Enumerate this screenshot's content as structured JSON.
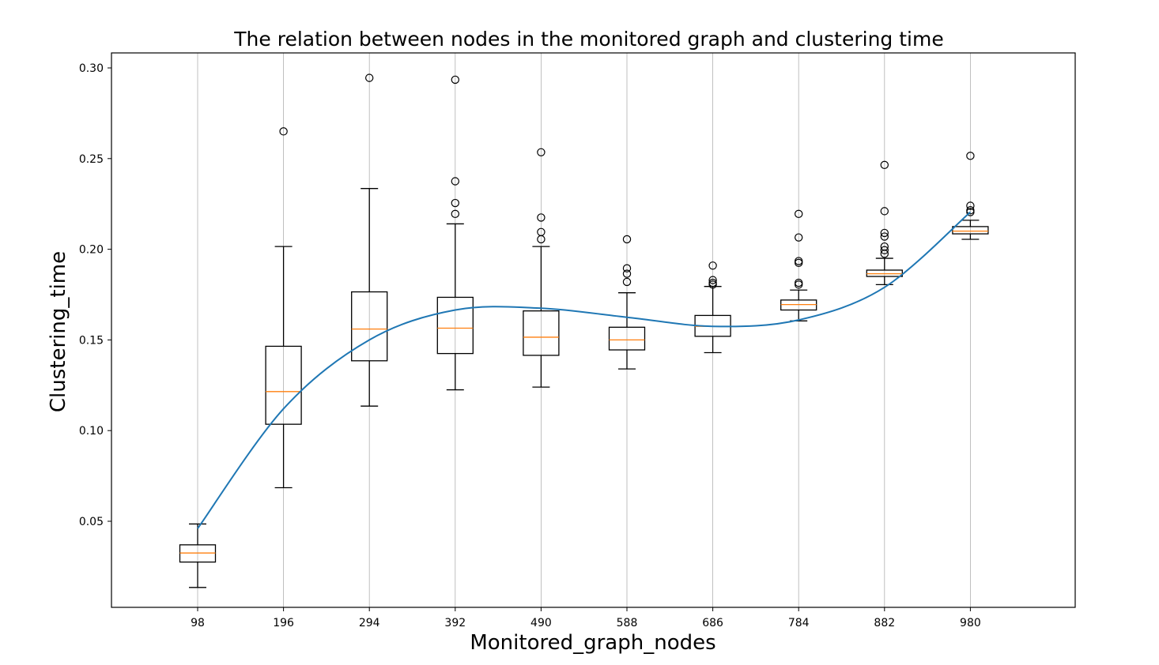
{
  "chart_data": {
    "type": "box",
    "title": "The relation between nodes in the monitored graph and clustering time",
    "xlabel": "Monitored_graph_nodes",
    "ylabel": "Clustering_time",
    "ylim": [
      0.0,
      0.3
    ],
    "y_ticks": [
      "0.05",
      "0.10",
      "0.15",
      "0.20",
      "0.25",
      "0.30"
    ],
    "categories": [
      "98",
      "196",
      "294",
      "392",
      "490",
      "588",
      "686",
      "784",
      "882",
      "980"
    ],
    "grid": "vertical",
    "box_color": "#000000",
    "median_color": "#ff7f0e",
    "trend_color": "#1f77b4",
    "boxes": [
      {
        "whislo": 0.0135,
        "q1": 0.0275,
        "med": 0.0325,
        "q3": 0.037,
        "whishi": 0.0485,
        "fliers": []
      },
      {
        "whislo": 0.0685,
        "q1": 0.1035,
        "med": 0.1215,
        "q3": 0.1465,
        "whishi": 0.2015,
        "fliers": [
          0.265
        ]
      },
      {
        "whislo": 0.1135,
        "q1": 0.1385,
        "med": 0.156,
        "q3": 0.1765,
        "whishi": 0.2335,
        "fliers": [
          0.2945
        ]
      },
      {
        "whislo": 0.1225,
        "q1": 0.1425,
        "med": 0.1565,
        "q3": 0.1735,
        "whishi": 0.214,
        "fliers": [
          0.2935,
          0.2375,
          0.2255,
          0.2195
        ]
      },
      {
        "whislo": 0.124,
        "q1": 0.1415,
        "med": 0.1515,
        "q3": 0.166,
        "whishi": 0.2015,
        "fliers": [
          0.2535,
          0.2175,
          0.2095,
          0.2055
        ]
      },
      {
        "whislo": 0.134,
        "q1": 0.1445,
        "med": 0.15,
        "q3": 0.157,
        "whishi": 0.176,
        "fliers": [
          0.2055,
          0.1895,
          0.1865,
          0.182
        ]
      },
      {
        "whislo": 0.143,
        "q1": 0.152,
        "med": 0.1575,
        "q3": 0.1635,
        "whishi": 0.1795,
        "fliers": [
          0.191,
          0.183,
          0.1815,
          0.1805
        ]
      },
      {
        "whislo": 0.1605,
        "q1": 0.1665,
        "med": 0.1695,
        "q3": 0.172,
        "whishi": 0.1775,
        "fliers": [
          0.2195,
          0.2065,
          0.1935,
          0.1925,
          0.1815,
          0.1805
        ]
      },
      {
        "whislo": 0.1805,
        "q1": 0.185,
        "med": 0.1865,
        "q3": 0.1885,
        "whishi": 0.195,
        "fliers": [
          0.2465,
          0.221,
          0.209,
          0.207,
          0.2015,
          0.1995,
          0.1975
        ]
      },
      {
        "whislo": 0.2055,
        "q1": 0.2085,
        "med": 0.21,
        "q3": 0.2125,
        "whishi": 0.216,
        "fliers": [
          0.2515,
          0.224,
          0.2215,
          0.2205
        ]
      }
    ],
    "trend_line": {
      "x": [
        "98",
        "196",
        "294",
        "392",
        "490",
        "588",
        "686",
        "784",
        "882",
        "980"
      ],
      "y": [
        0.046,
        0.112,
        0.15,
        0.1665,
        0.1675,
        0.1625,
        0.1575,
        0.161,
        0.179,
        0.2205
      ]
    }
  }
}
